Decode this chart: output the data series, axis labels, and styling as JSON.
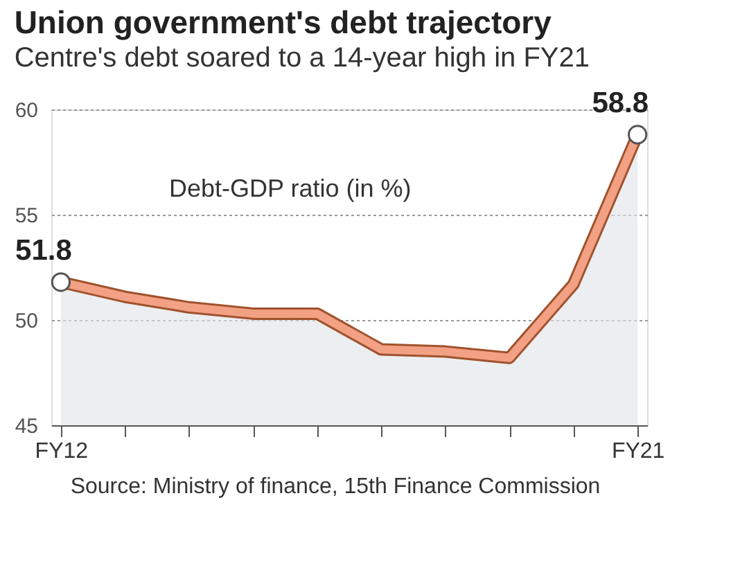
{
  "chart_data": {
    "type": "area",
    "title": "Union government's debt trajectory",
    "subtitle": "Centre's debt soared to a 14-year high in FY21",
    "categories": [
      "FY12",
      null,
      null,
      null,
      null,
      null,
      null,
      null,
      null,
      "FY21"
    ],
    "series": [
      {
        "color": "#f2a184",
        "values": [
          51.8,
          51.1,
          50.6,
          50.3,
          50.3,
          48.6,
          48.5,
          48.2,
          51.7,
          58.8
        ]
      }
    ],
    "value_labels": [
      "51.8",
      null,
      null,
      null,
      null,
      null,
      null,
      null,
      null,
      "58.8"
    ],
    "ylim": [
      45,
      60
    ],
    "yticks": [
      45,
      50,
      55,
      60
    ],
    "grid": "y",
    "annotations": [
      "Debt-GDP ratio (in %)",
      "Source: Ministry of finance, 15th Finance Commission"
    ]
  }
}
